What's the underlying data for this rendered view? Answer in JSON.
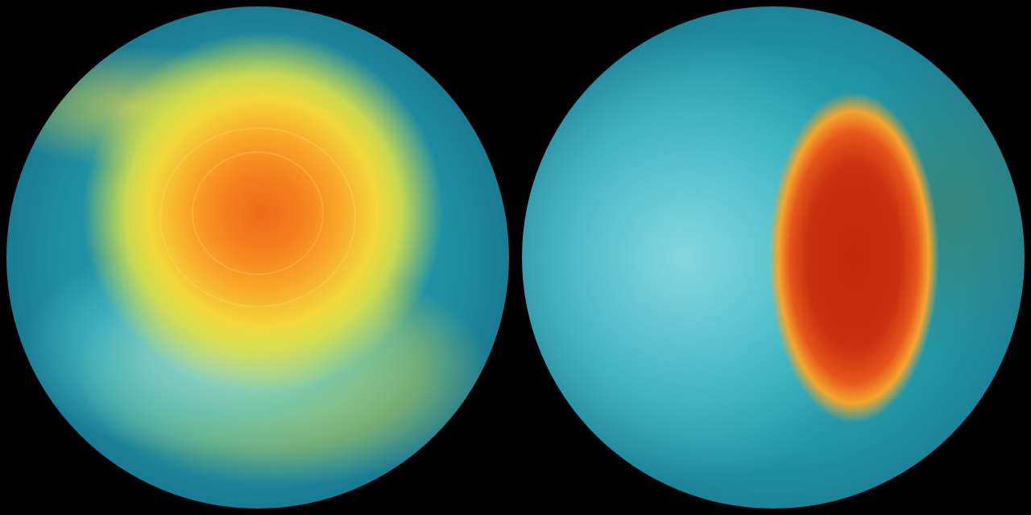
{
  "colors": {
    "background": "#000000",
    "ocean": "#1f8fa2",
    "hot_core": "#c02808",
    "warm": "#f9a82a",
    "yellow": "#f2d83a",
    "land_ice": "#96e1e6"
  },
  "globes": [
    {
      "view": "south-polar",
      "feature": "orange-vortex"
    },
    {
      "view": "north-polar",
      "feature": "red-elongated-plume"
    }
  ]
}
